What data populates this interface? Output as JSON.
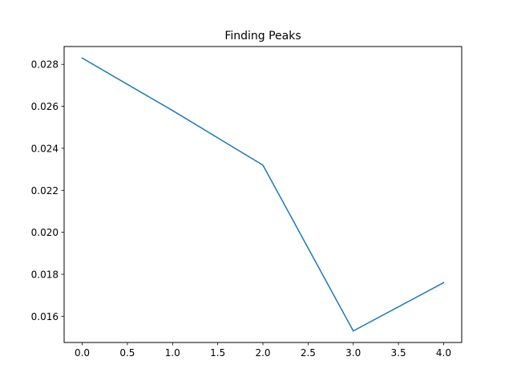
{
  "chart_data": {
    "type": "line",
    "title": "Finding Peaks",
    "xlabel": "",
    "ylabel": "",
    "x": [
      0,
      1,
      2,
      3,
      4
    ],
    "series": [
      {
        "values": [
          0.0283,
          0.0258,
          0.0232,
          0.0153,
          0.0176
        ],
        "color": "#1f77b4"
      }
    ],
    "xlim": [
      -0.2,
      4.2
    ],
    "ylim": [
      0.01475,
      0.02885
    ],
    "xticks": [
      0,
      0.5,
      1,
      1.5,
      2,
      2.5,
      3,
      3.5,
      4
    ],
    "xtick_labels": [
      "0.0",
      "0.5",
      "1.0",
      "1.5",
      "2.0",
      "2.5",
      "3.0",
      "3.5",
      "4.0"
    ],
    "yticks": [
      0.016,
      0.018,
      0.02,
      0.022,
      0.024,
      0.026,
      0.028
    ],
    "ytick_labels": [
      "0.016",
      "0.018",
      "0.020",
      "0.022",
      "0.024",
      "0.026",
      "0.028"
    ],
    "grid": false,
    "legend": false
  }
}
